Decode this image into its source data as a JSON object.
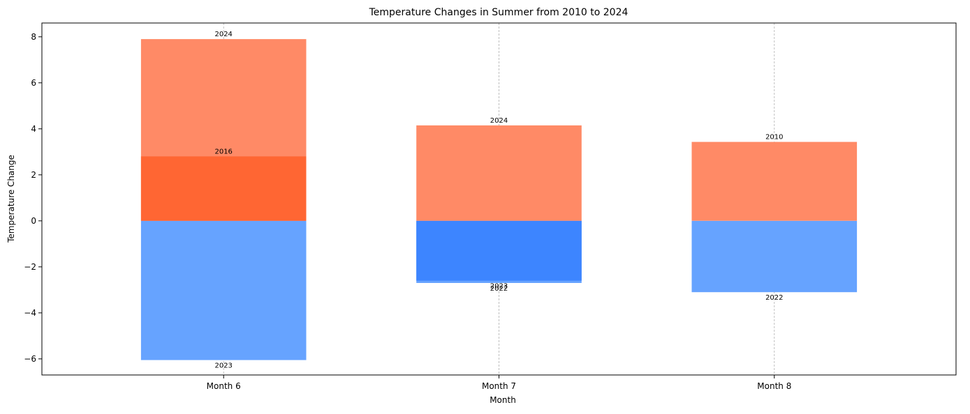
{
  "chart_data": {
    "type": "bar",
    "title": "Temperature Changes in Summer from 2010 to 2024",
    "xlabel": "Month",
    "ylabel": "Temperature Change",
    "categories": [
      "Month 6",
      "Month 7",
      "Month 8"
    ],
    "ylim": [
      -6.7,
      8.6
    ],
    "yticks": [
      -6,
      -4,
      -2,
      0,
      2,
      4,
      6,
      8
    ],
    "grid": "vertical dashed",
    "bars": [
      {
        "category": "Month 6",
        "value": 7.9,
        "label": "2024",
        "color": "#ff8a66"
      },
      {
        "category": "Month 6",
        "value": 2.8,
        "label": "2016",
        "color": "#ff6633"
      },
      {
        "category": "Month 6",
        "value": -6.05,
        "label": "2023",
        "color": "#66a3ff"
      },
      {
        "category": "Month 7",
        "value": 4.15,
        "label": "2024",
        "color": "#ff8a66"
      },
      {
        "category": "Month 7",
        "value": -2.7,
        "label": "2022",
        "color": "#66a3ff"
      },
      {
        "category": "Month 7",
        "value": -2.6,
        "label": "2023",
        "color": "#3d85ff"
      },
      {
        "category": "Month 8",
        "value": 3.43,
        "label": "2010",
        "color": "#ff8a66"
      },
      {
        "category": "Month 8",
        "value": -3.1,
        "label": "2022",
        "color": "#66a3ff"
      }
    ]
  }
}
